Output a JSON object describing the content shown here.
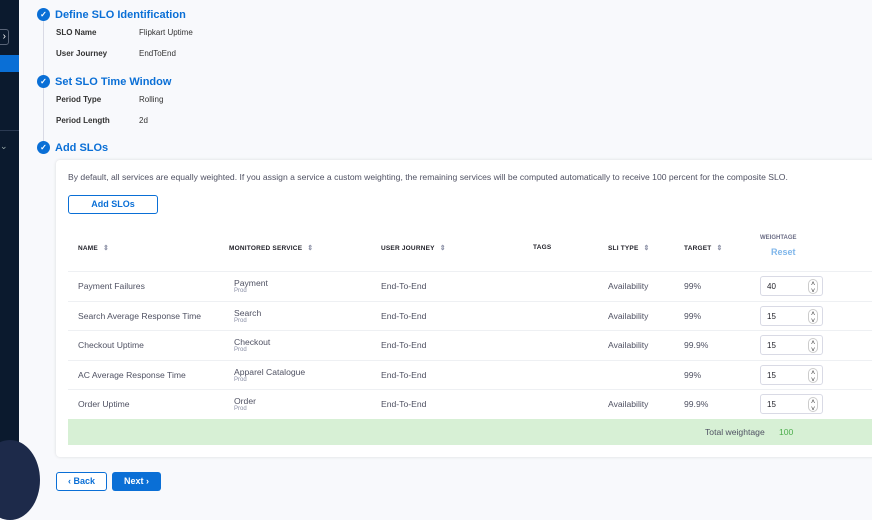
{
  "steps": [
    {
      "title": "Define SLO Identification",
      "fields": [
        {
          "label": "SLO Name",
          "value": "Flipkart Uptime"
        },
        {
          "label": "User Journey",
          "value": "EndToEnd"
        }
      ]
    },
    {
      "title": "Set SLO Time Window",
      "fields": [
        {
          "label": "Period Type",
          "value": "Rolling"
        },
        {
          "label": "Period Length",
          "value": "2d"
        }
      ]
    },
    {
      "title": "Add SLOs"
    }
  ],
  "add_slos": {
    "description": "By default, all services are equally weighted. If you assign a service a custom weighting, the remaining services will be computed automatically to receive 100 percent for the composite SLO.",
    "add_button": "Add SLOs",
    "columns": {
      "name": "NAME",
      "service": "MONITORED SERVICE",
      "journey": "USER JOURNEY",
      "tags": "TAGS",
      "sli": "SLI TYPE",
      "target": "TARGET",
      "weightage": "WEIGHTAGE",
      "reset": "Reset"
    },
    "rows": [
      {
        "name": "Payment Failures",
        "service": "Payment",
        "env": "Prod",
        "journey": "End-To-End",
        "sli": "Availability",
        "target": "99%",
        "weight": "40"
      },
      {
        "name": "Search Average Response Time",
        "service": "Search",
        "env": "Prod",
        "journey": "End-To-End",
        "sli": "Availability",
        "target": "99%",
        "weight": "15"
      },
      {
        "name": "Checkout Uptime",
        "service": "Checkout",
        "env": "Prod",
        "journey": "End-To-End",
        "sli": "Availability",
        "target": "99.9%",
        "weight": "15"
      },
      {
        "name": "AC Average Response Time",
        "service": "Apparel Catalogue",
        "env": "Prod",
        "journey": "End-To-End",
        "sli": "",
        "target": "99%",
        "weight": "15"
      },
      {
        "name": "Order Uptime",
        "service": "Order",
        "env": "Prod",
        "journey": "End-To-End",
        "sli": "Availability",
        "target": "99.9%",
        "weight": "15"
      }
    ],
    "total_label": "Total weightage",
    "total_value": "100"
  },
  "nav": {
    "back": "Back",
    "next": "Next"
  },
  "colors": {
    "accent": "#0a6fd6",
    "success_bg": "#d7f0d5",
    "success_text": "#4dae4d"
  }
}
